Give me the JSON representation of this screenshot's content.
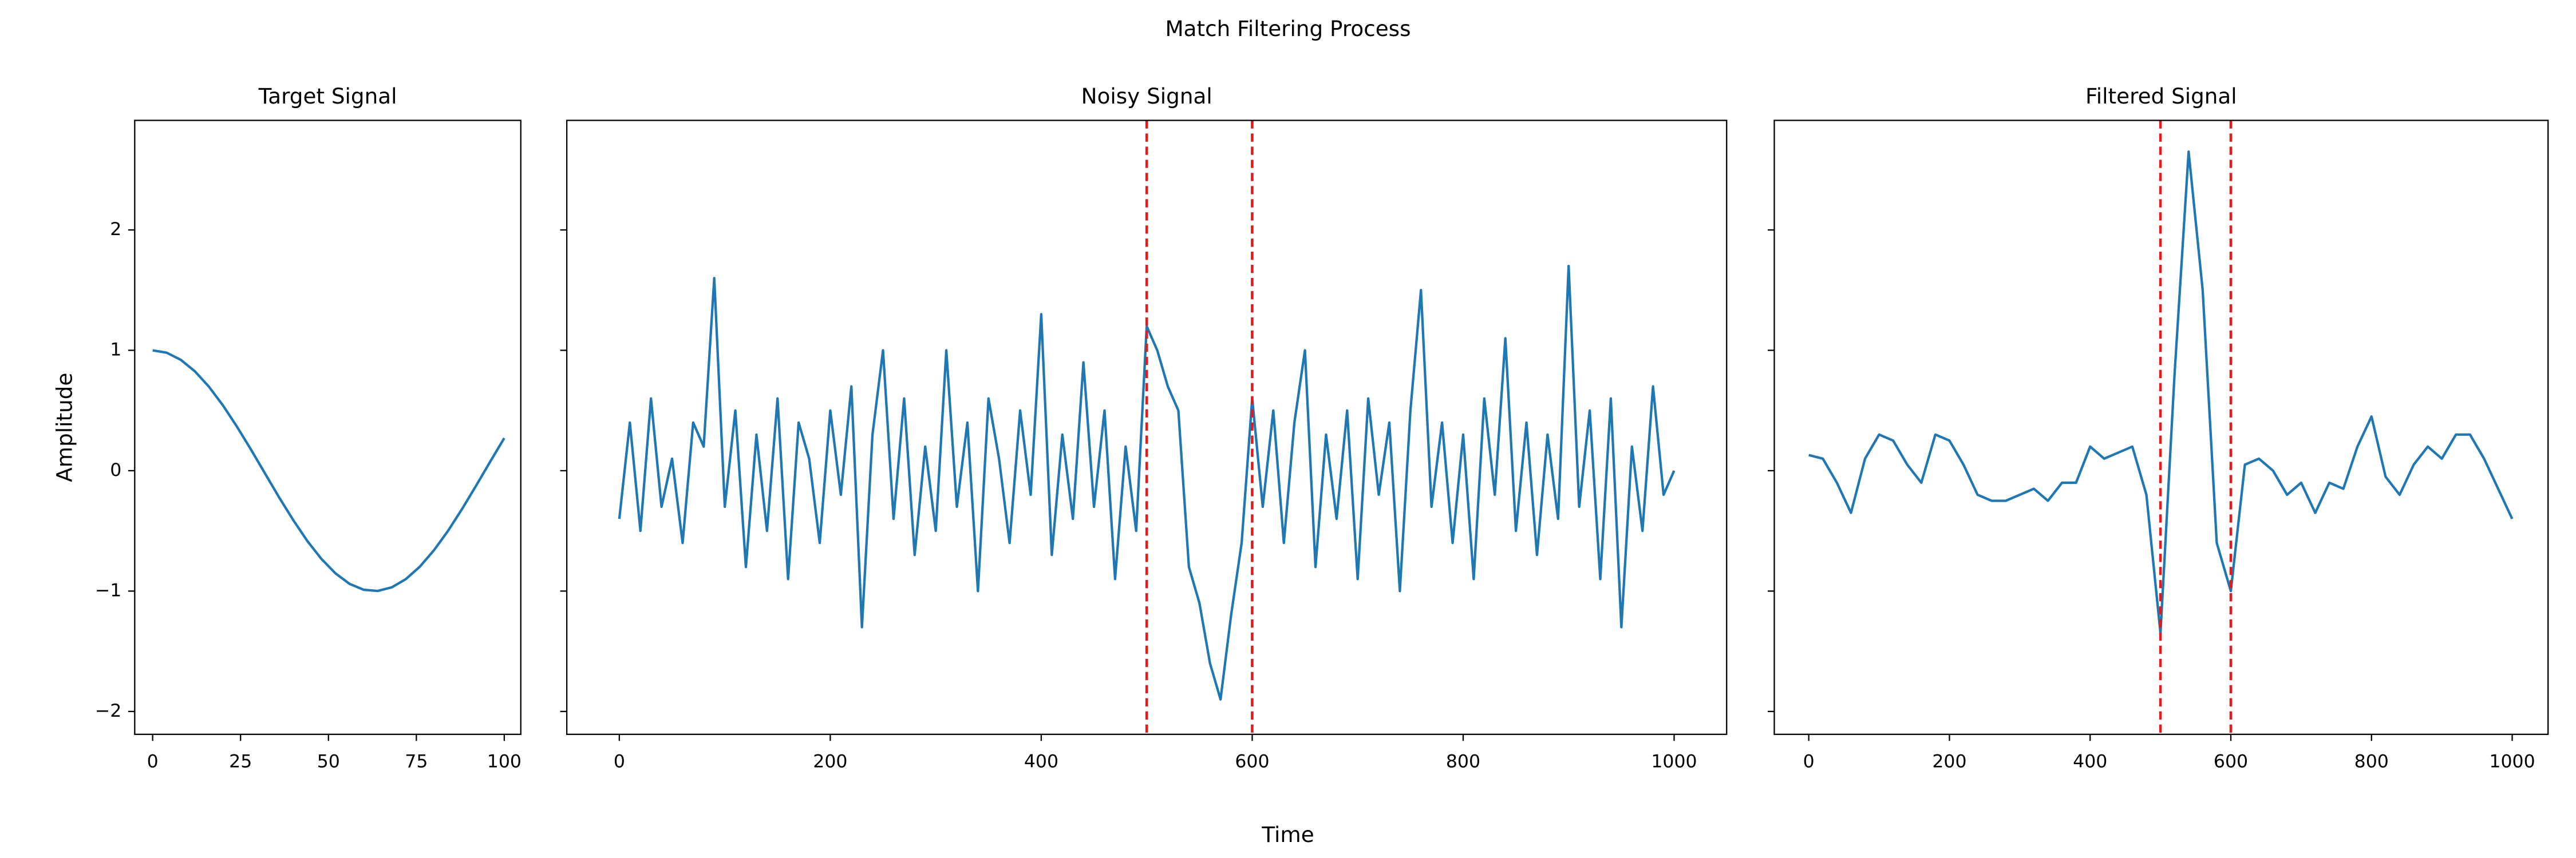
{
  "title": "Match Filtering Process",
  "xlabel": "Time",
  "chart_data": [
    {
      "type": "line",
      "title": "Target Signal",
      "ylabel": "Amplitude",
      "show_ytick_labels": true,
      "x": [
        0,
        4,
        8,
        12,
        16,
        20,
        24,
        28,
        32,
        36,
        40,
        44,
        48,
        52,
        56,
        60,
        64,
        68,
        72,
        76,
        80,
        84,
        88,
        92,
        96,
        100
      ],
      "series": [
        {
          "color": "#1f77b4",
          "values": [
            1,
            0.98,
            0.921,
            0.826,
            0.698,
            0.542,
            0.365,
            0.174,
            -0.025,
            -0.223,
            -0.411,
            -0.584,
            -0.733,
            -0.853,
            -0.94,
            -0.989,
            -0.999,
            -0.969,
            -0.901,
            -0.797,
            -0.661,
            -0.5,
            -0.318,
            -0.124,
            0.075,
            0.271
          ]
        }
      ],
      "xlim": [
        -5.1,
        104.7
      ],
      "xticks": [
        0,
        25,
        50,
        75,
        100
      ],
      "ylim": [
        -2.19,
        2.91
      ],
      "yticks": [
        {
          "value": -2,
          "label": "−2"
        },
        {
          "value": -1,
          "label": "−1"
        },
        0,
        1,
        2
      ]
    },
    {
      "type": "line",
      "title": "Noisy Signal",
      "show_ytick_labels": false,
      "x": [
        0,
        10,
        20,
        30,
        40,
        50,
        60,
        70,
        80,
        90,
        100,
        110,
        120,
        130,
        140,
        150,
        160,
        170,
        180,
        190,
        200,
        210,
        220,
        230,
        240,
        250,
        260,
        270,
        280,
        290,
        300,
        310,
        320,
        330,
        340,
        350,
        360,
        370,
        380,
        390,
        400,
        410,
        420,
        430,
        440,
        450,
        460,
        470,
        480,
        490,
        500,
        510,
        520,
        530,
        540,
        550,
        560,
        570,
        580,
        590,
        600,
        610,
        620,
        630,
        640,
        650,
        660,
        670,
        680,
        690,
        700,
        710,
        720,
        730,
        740,
        750,
        760,
        770,
        780,
        790,
        800,
        810,
        820,
        830,
        840,
        850,
        860,
        870,
        880,
        890,
        900,
        910,
        920,
        930,
        940,
        950,
        960,
        970,
        980,
        990,
        1000
      ],
      "series": [
        {
          "color": "#1f77b4",
          "values": [
            -0.4,
            0.4,
            -0.5,
            0.6,
            -0.3,
            0.1,
            -0.6,
            0.4,
            0.2,
            1.6,
            -0.3,
            0.5,
            -0.8,
            0.3,
            -0.5,
            0.6,
            -0.9,
            0.4,
            0.1,
            -0.6,
            0.5,
            -0.2,
            0.7,
            -1.3,
            0.3,
            1.0,
            -0.4,
            0.6,
            -0.7,
            0.2,
            -0.5,
            1.0,
            -0.3,
            0.4,
            -1.0,
            0.6,
            0.1,
            -0.6,
            0.5,
            -0.2,
            1.3,
            -0.7,
            0.3,
            -0.4,
            0.9,
            -0.3,
            0.5,
            -0.9,
            0.2,
            -0.5,
            1.2,
            1.0,
            0.7,
            0.5,
            -0.8,
            -1.1,
            -1.6,
            -1.9,
            -1.2,
            -0.6,
            0.6,
            -0.3,
            0.5,
            -0.6,
            0.4,
            1.0,
            -0.8,
            0.3,
            -0.4,
            0.5,
            -0.9,
            0.6,
            -0.2,
            0.4,
            -1.0,
            0.5,
            1.5,
            -0.3,
            0.4,
            -0.6,
            0.3,
            -0.9,
            0.6,
            -0.2,
            1.1,
            -0.5,
            0.4,
            -0.7,
            0.3,
            -0.4,
            1.7,
            -0.3,
            0.5,
            -0.9,
            0.6,
            -1.3,
            0.2,
            -0.5,
            0.7,
            -0.2,
            0.0
          ]
        }
      ],
      "vlines": [
        500,
        600
      ],
      "vline_color": "#e41a1c",
      "xlim": [
        -49.8,
        1049.8
      ],
      "xticks": [
        0,
        200,
        400,
        600,
        800,
        1000
      ],
      "ylim": [
        -2.19,
        2.91
      ],
      "yticks": [
        {
          "value": -2,
          "label": "−2"
        },
        {
          "value": -1,
          "label": "−1"
        },
        0,
        1,
        2
      ]
    },
    {
      "type": "line",
      "title": "Filtered Signal",
      "show_ytick_labels": false,
      "x": [
        0,
        20,
        40,
        60,
        80,
        100,
        120,
        140,
        160,
        180,
        200,
        220,
        240,
        260,
        280,
        300,
        320,
        340,
        360,
        380,
        400,
        420,
        440,
        460,
        480,
        500,
        520,
        540,
        560,
        580,
        600,
        620,
        640,
        660,
        680,
        700,
        720,
        740,
        760,
        780,
        800,
        820,
        840,
        860,
        880,
        900,
        920,
        940,
        960,
        980,
        1000
      ],
      "series": [
        {
          "color": "#1f77b4",
          "values": [
            0.13,
            0.1,
            -0.1,
            -0.35,
            0.1,
            0.3,
            0.25,
            0.05,
            -0.1,
            0.3,
            0.25,
            0.05,
            -0.2,
            -0.25,
            -0.25,
            -0.2,
            -0.15,
            -0.25,
            -0.1,
            -0.1,
            0.2,
            0.1,
            0.15,
            0.2,
            -0.2,
            -1.35,
            0.8,
            2.65,
            1.5,
            -0.6,
            -1.0,
            0.05,
            0.1,
            0.0,
            -0.2,
            -0.1,
            -0.35,
            -0.1,
            -0.15,
            0.2,
            0.45,
            -0.05,
            -0.2,
            0.05,
            0.2,
            0.1,
            0.3,
            0.3,
            0.1,
            -0.15,
            -0.4
          ]
        }
      ],
      "vlines": [
        500,
        600
      ],
      "vline_color": "#e41a1c",
      "xlim": [
        -49,
        1051
      ],
      "xticks": [
        0,
        200,
        400,
        600,
        800,
        1000
      ],
      "ylim": [
        -2.19,
        2.91
      ],
      "yticks": [
        {
          "value": -2,
          "label": "−2"
        },
        {
          "value": -1,
          "label": "−1"
        },
        0,
        1,
        2
      ]
    }
  ]
}
